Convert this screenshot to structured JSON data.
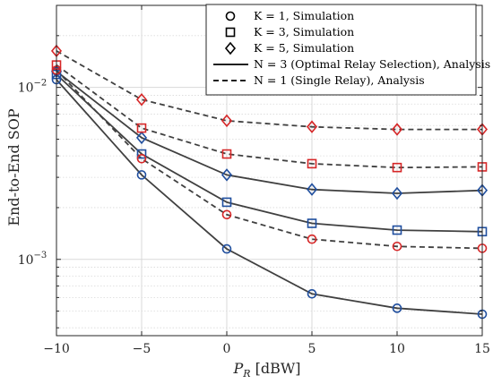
{
  "chart_data": {
    "type": "line",
    "xlabel": "P_R [dBW]",
    "ylabel": "End-to-End SOP",
    "xlim": [
      -10,
      15
    ],
    "ylim": [
      0.00036,
      0.03
    ],
    "yscale": "log",
    "grid": true,
    "x": [
      -10,
      -5,
      0,
      5,
      10,
      15
    ],
    "x_tick_labels": [
      "−10",
      "−5",
      "0",
      "5",
      "10",
      "15"
    ],
    "y_ticks": [
      {
        "value": 0.01,
        "label": "10",
        "exp": "−2"
      },
      {
        "value": 0.001,
        "label": "10",
        "exp": "−3"
      }
    ],
    "legend_position": "top-right",
    "legend": [
      {
        "kind": "circle",
        "label": "K = 1, Simulation"
      },
      {
        "kind": "square",
        "label": "K = 3, Simulation"
      },
      {
        "kind": "diamond",
        "label": "K = 5, Simulation"
      },
      {
        "kind": "solid",
        "label": "N = 3 (Optimal Relay Selection), Analysis"
      },
      {
        "kind": "dashed",
        "label": "N = 1 (Single Relay), Analysis"
      }
    ],
    "series": [
      {
        "marker": "circle",
        "N": 3,
        "K": 1,
        "line": "solid",
        "color": "#1f4e9e",
        "values": [
          0.0111,
          0.0031,
          0.00115,
          0.00063,
          0.00052,
          0.00048
        ]
      },
      {
        "marker": "square",
        "N": 3,
        "K": 3,
        "line": "solid",
        "color": "#1f4e9e",
        "values": [
          0.0119,
          0.0041,
          0.00215,
          0.00162,
          0.00148,
          0.00145
        ]
      },
      {
        "marker": "diamond",
        "N": 3,
        "K": 5,
        "line": "solid",
        "color": "#1f4e9e",
        "values": [
          0.0124,
          0.0051,
          0.0031,
          0.00255,
          0.00242,
          0.00252
        ]
      },
      {
        "marker": "circle",
        "N": 1,
        "K": 1,
        "line": "dashed",
        "color": "#d62728",
        "values": [
          0.0126,
          0.00385,
          0.00182,
          0.00131,
          0.00119,
          0.00116
        ]
      },
      {
        "marker": "square",
        "N": 1,
        "K": 3,
        "line": "dashed",
        "color": "#d62728",
        "values": [
          0.0135,
          0.0058,
          0.0041,
          0.0036,
          0.00342,
          0.00345
        ]
      },
      {
        "marker": "diamond",
        "N": 1,
        "K": 5,
        "line": "dashed",
        "color": "#d62728",
        "values": [
          0.0163,
          0.0085,
          0.0064,
          0.0059,
          0.0057,
          0.0057
        ]
      }
    ],
    "colors": {
      "analysis_line": "#404040",
      "grid": "#d9d9d9",
      "axes": "#262626"
    }
  }
}
